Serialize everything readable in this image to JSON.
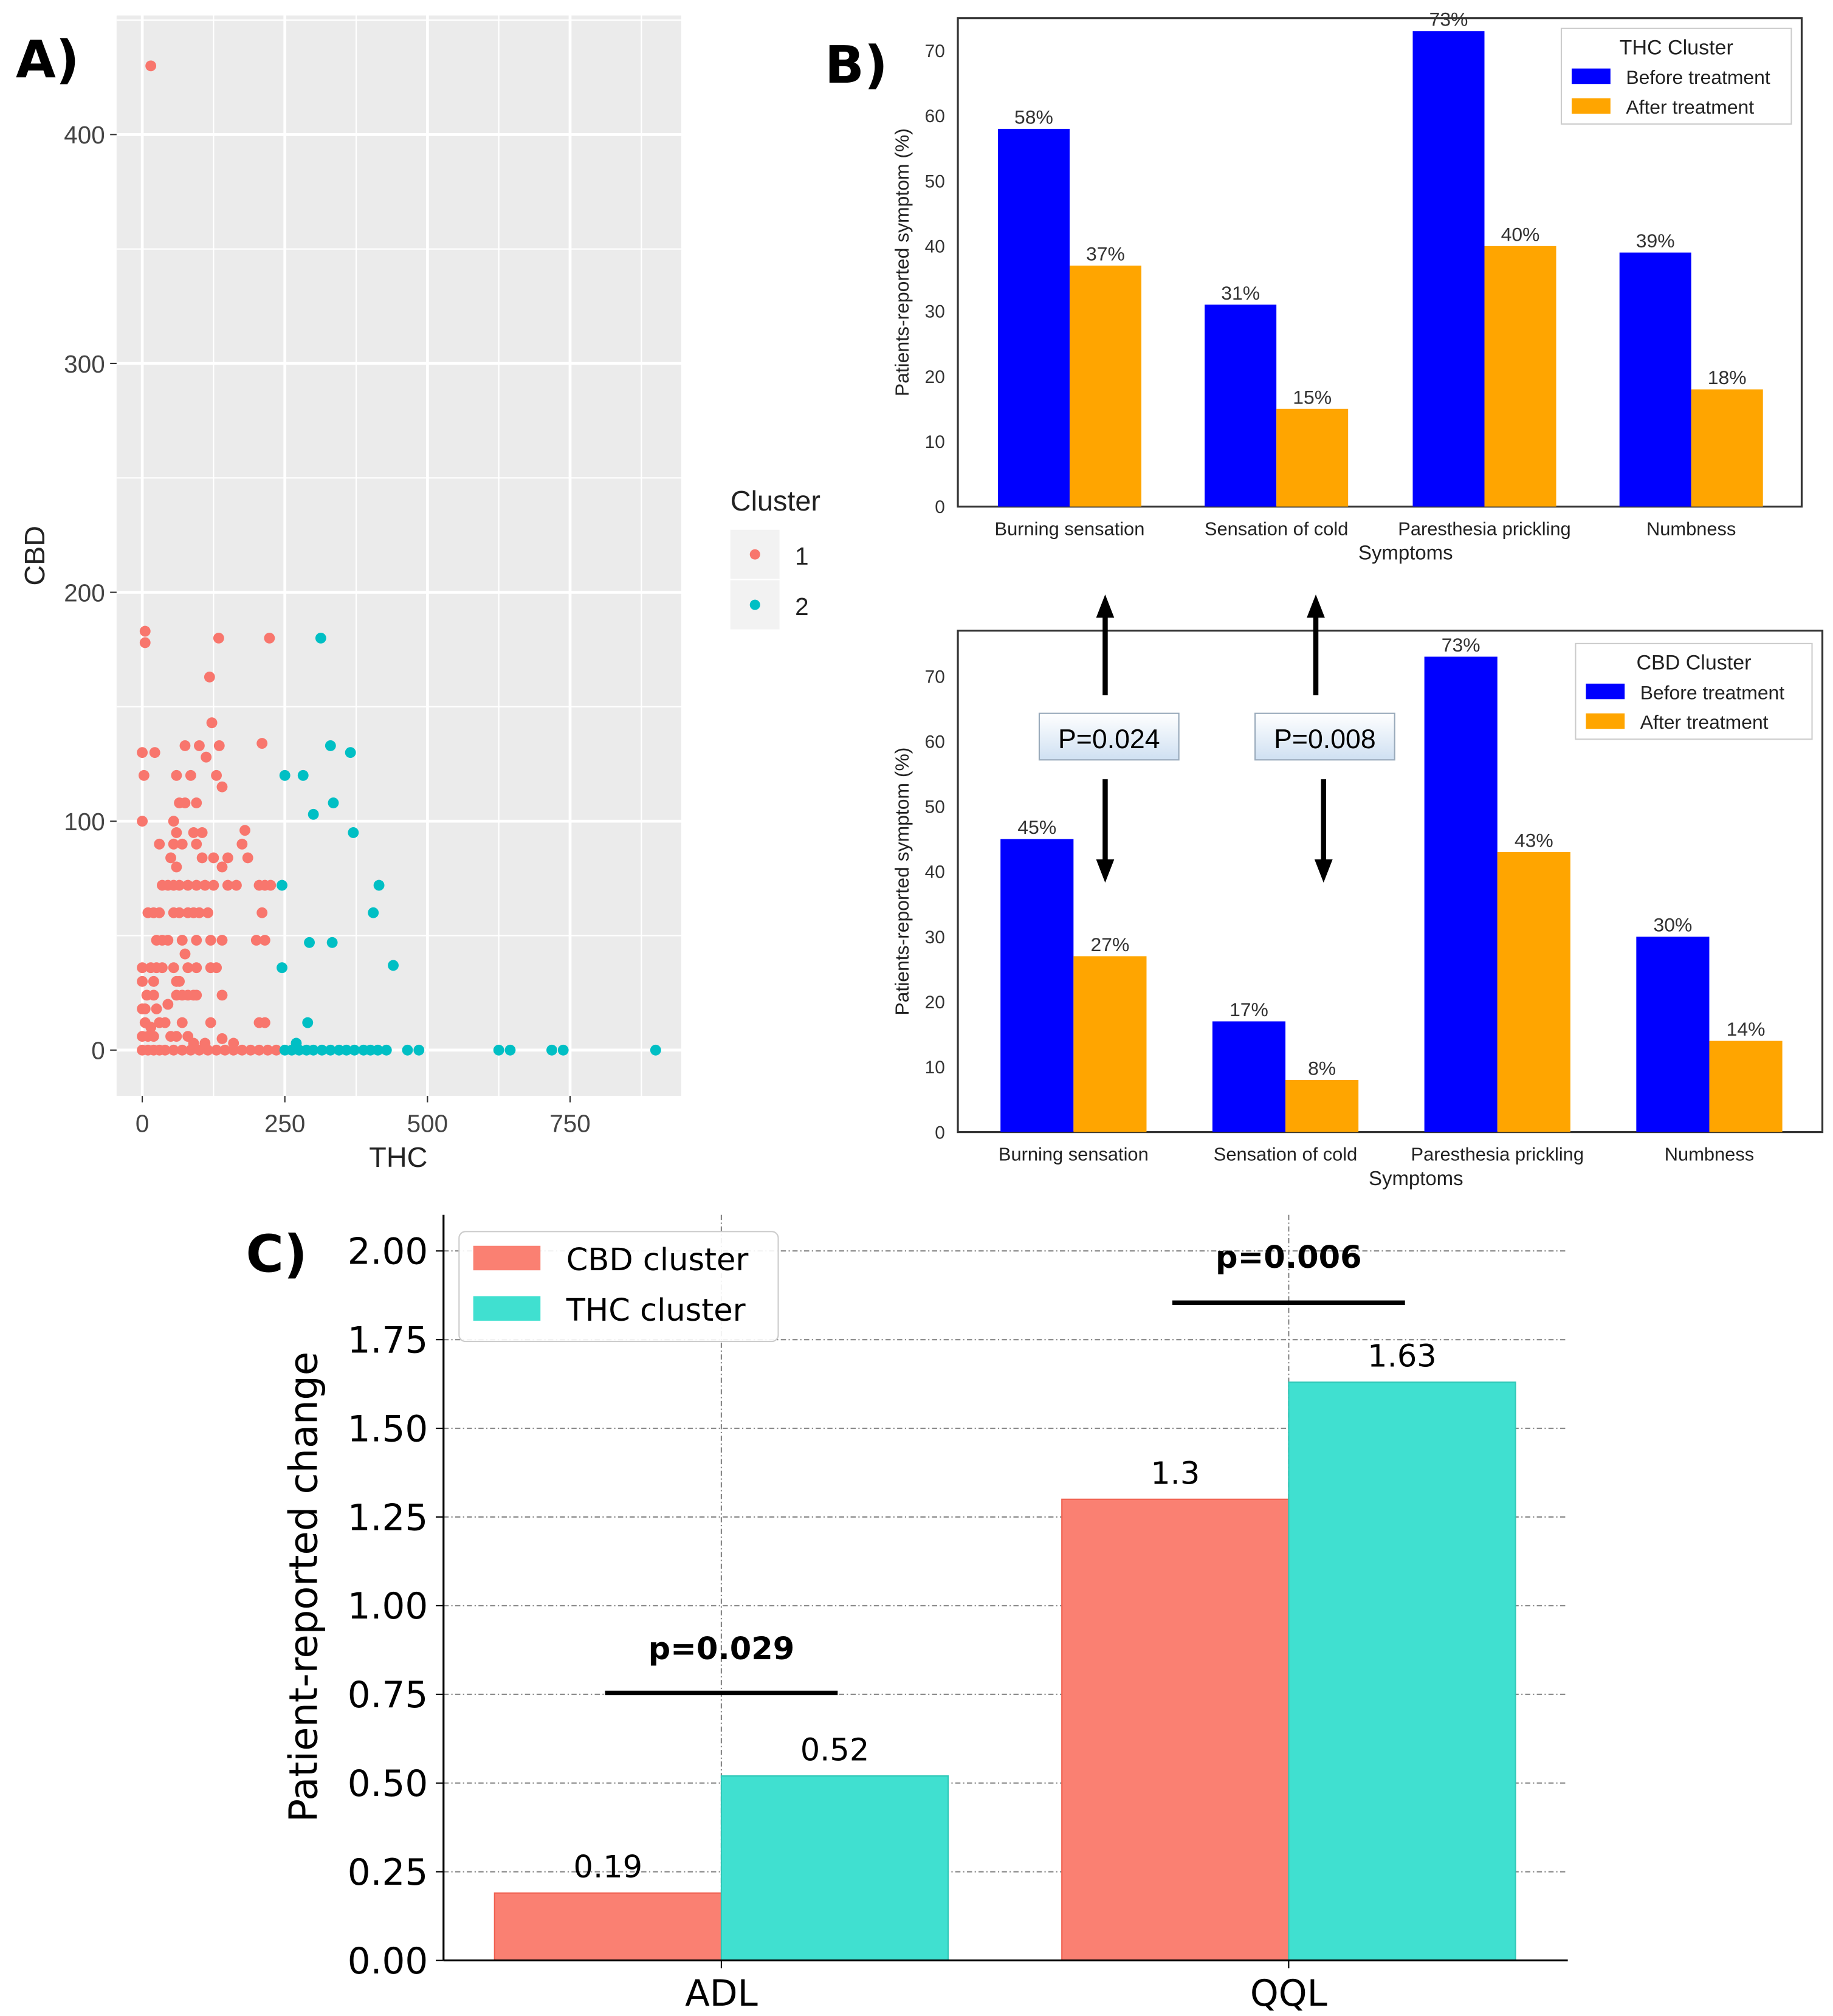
{
  "panel_labels": {
    "a": "A)",
    "b": "B)",
    "c": "C)"
  },
  "chart_data": [
    {
      "type": "scatter",
      "panel": "A",
      "xlabel": "THC",
      "ylabel": "CBD",
      "xlim": [
        -45,
        945
      ],
      "ylim": [
        -20,
        452
      ],
      "xticks": [
        "0",
        "250",
        "500",
        "750"
      ],
      "xtick_values": [
        0,
        250,
        500,
        750
      ],
      "yticks": [
        "0",
        "100",
        "200",
        "300",
        "400"
      ],
      "ytick_values": [
        0,
        100,
        200,
        300,
        400
      ],
      "grid": true,
      "legend": {
        "title": "Cluster",
        "placement": "right",
        "entries": [
          "1",
          "2"
        ]
      },
      "colors": {
        "1": "#F8766D",
        "2": "#00BFC4"
      },
      "series": [
        {
          "name": "1",
          "points": [
            [
              15,
              430
            ],
            [
              5,
              183
            ],
            [
              5,
              178
            ],
            [
              134,
              180
            ],
            [
              223,
              180
            ],
            [
              118,
              163
            ],
            [
              122,
              143
            ],
            [
              0,
              130
            ],
            [
              22,
              130
            ],
            [
              75,
              133
            ],
            [
              100,
              133
            ],
            [
              112,
              128
            ],
            [
              135,
              133
            ],
            [
              210,
              134
            ],
            [
              3,
              120
            ],
            [
              60,
              120
            ],
            [
              85,
              120
            ],
            [
              130,
              120
            ],
            [
              140,
              115
            ],
            [
              65,
              108
            ],
            [
              75,
              108
            ],
            [
              95,
              108
            ],
            [
              0,
              100
            ],
            [
              55,
              100
            ],
            [
              60,
              95
            ],
            [
              90,
              95
            ],
            [
              105,
              95
            ],
            [
              180,
              96
            ],
            [
              30,
              90
            ],
            [
              55,
              90
            ],
            [
              70,
              90
            ],
            [
              95,
              90
            ],
            [
              175,
              90
            ],
            [
              185,
              84
            ],
            [
              50,
              84
            ],
            [
              60,
              80
            ],
            [
              105,
              84
            ],
            [
              125,
              84
            ],
            [
              150,
              84
            ],
            [
              140,
              80
            ],
            [
              35,
              72
            ],
            [
              45,
              72
            ],
            [
              55,
              72
            ],
            [
              65,
              72
            ],
            [
              80,
              72
            ],
            [
              95,
              72
            ],
            [
              110,
              72
            ],
            [
              125,
              72
            ],
            [
              150,
              72
            ],
            [
              165,
              72
            ],
            [
              205,
              72
            ],
            [
              215,
              72
            ],
            [
              225,
              72
            ],
            [
              10,
              60
            ],
            [
              20,
              60
            ],
            [
              30,
              60
            ],
            [
              55,
              60
            ],
            [
              65,
              60
            ],
            [
              80,
              60
            ],
            [
              90,
              60
            ],
            [
              100,
              60
            ],
            [
              115,
              60
            ],
            [
              210,
              60
            ],
            [
              25,
              48
            ],
            [
              35,
              48
            ],
            [
              45,
              48
            ],
            [
              70,
              48
            ],
            [
              75,
              42
            ],
            [
              95,
              48
            ],
            [
              120,
              48
            ],
            [
              140,
              48
            ],
            [
              200,
              48
            ],
            [
              215,
              48
            ],
            [
              0,
              36
            ],
            [
              15,
              36
            ],
            [
              25,
              36
            ],
            [
              35,
              36
            ],
            [
              55,
              36
            ],
            [
              60,
              30
            ],
            [
              65,
              30
            ],
            [
              80,
              36
            ],
            [
              95,
              36
            ],
            [
              120,
              36
            ],
            [
              130,
              36
            ],
            [
              0,
              30
            ],
            [
              20,
              30
            ],
            [
              60,
              24
            ],
            [
              70,
              24
            ],
            [
              80,
              24
            ],
            [
              90,
              24
            ],
            [
              95,
              24
            ],
            [
              140,
              24
            ],
            [
              20,
              24
            ],
            [
              45,
              20
            ],
            [
              5,
              18
            ],
            [
              25,
              18
            ],
            [
              30,
              12
            ],
            [
              5,
              12
            ],
            [
              10,
              6
            ],
            [
              15,
              10
            ],
            [
              20,
              6
            ],
            [
              40,
              12
            ],
            [
              50,
              6
            ],
            [
              70,
              12
            ],
            [
              120,
              12
            ],
            [
              205,
              12
            ],
            [
              215,
              12
            ],
            [
              0,
              0
            ],
            [
              10,
              0
            ],
            [
              20,
              0
            ],
            [
              30,
              0
            ],
            [
              40,
              0
            ],
            [
              55,
              0
            ],
            [
              70,
              0
            ],
            [
              85,
              0
            ],
            [
              100,
              0
            ],
            [
              115,
              0
            ],
            [
              130,
              0
            ],
            [
              145,
              0
            ],
            [
              160,
              0
            ],
            [
              175,
              0
            ],
            [
              190,
              0
            ],
            [
              205,
              0
            ],
            [
              220,
              0
            ],
            [
              235,
              0
            ],
            [
              60,
              6
            ],
            [
              80,
              6
            ],
            [
              90,
              3
            ],
            [
              110,
              3
            ],
            [
              140,
              5
            ],
            [
              160,
              3
            ],
            [
              0,
              6
            ],
            [
              0,
              18
            ],
            [
              8,
              24
            ]
          ]
        },
        {
          "name": "2",
          "points": [
            [
              313,
              180
            ],
            [
              330,
              133
            ],
            [
              365,
              130
            ],
            [
              250,
              120
            ],
            [
              282,
              120
            ],
            [
              300,
              103
            ],
            [
              335,
              108
            ],
            [
              370,
              95
            ],
            [
              245,
              72
            ],
            [
              415,
              72
            ],
            [
              405,
              60
            ],
            [
              293,
              47
            ],
            [
              333,
              47
            ],
            [
              440,
              37
            ],
            [
              245,
              36
            ],
            [
              290,
              12
            ],
            [
              270,
              3
            ],
            [
              250,
              0
            ],
            [
              262,
              0
            ],
            [
              275,
              0
            ],
            [
              288,
              0
            ],
            [
              300,
              0
            ],
            [
              315,
              0
            ],
            [
              330,
              0
            ],
            [
              345,
              0
            ],
            [
              358,
              0
            ],
            [
              372,
              0
            ],
            [
              388,
              0
            ],
            [
              400,
              0
            ],
            [
              413,
              0
            ],
            [
              428,
              0
            ],
            [
              465,
              0
            ],
            [
              485,
              0
            ],
            [
              625,
              0
            ],
            [
              645,
              0
            ],
            [
              718,
              0
            ],
            [
              738,
              0
            ],
            [
              900,
              0
            ]
          ]
        }
      ]
    },
    {
      "type": "bar",
      "panel": "B-top",
      "xlabel": "Symptoms",
      "ylabel": "Patients-reported symptom (%)",
      "ylim": [
        0,
        75
      ],
      "yticks": [
        "0",
        "10",
        "20",
        "30",
        "40",
        "50",
        "60",
        "70"
      ],
      "categories": [
        "Burning sensation",
        "Sensation of cold",
        "Paresthesia prickling",
        "Numbness"
      ],
      "legend": {
        "title": "THC Cluster",
        "placement": "top-right"
      },
      "series": [
        {
          "name": "Before treatment",
          "color": "#0000FF",
          "values": [
            58,
            31,
            73,
            39
          ],
          "labels": [
            "58%",
            "31%",
            "73%",
            "39%"
          ]
        },
        {
          "name": "After treatment",
          "color": "#FFA500",
          "values": [
            37,
            15,
            40,
            18
          ],
          "labels": [
            "37%",
            "15%",
            "40%",
            "18%"
          ]
        }
      ]
    },
    {
      "type": "bar",
      "panel": "B-bottom",
      "xlabel": "Symptoms",
      "ylabel": "Patients-reported symptom (%)",
      "ylim": [
        0,
        77
      ],
      "yticks": [
        "0",
        "10",
        "20",
        "30",
        "40",
        "50",
        "60",
        "70"
      ],
      "categories": [
        "Burning sensation",
        "Sensation of cold",
        "Paresthesia prickling",
        "Numbness"
      ],
      "legend": {
        "title": "CBD Cluster",
        "placement": "top-right"
      },
      "series": [
        {
          "name": "Before treatment",
          "color": "#0000FF",
          "values": [
            45,
            17,
            73,
            30
          ],
          "labels": [
            "45%",
            "17%",
            "73%",
            "30%"
          ]
        },
        {
          "name": "After treatment",
          "color": "#FFA500",
          "values": [
            27,
            8,
            43,
            14
          ],
          "labels": [
            "27%",
            "8%",
            "43%",
            "14%"
          ]
        }
      ],
      "annotations": [
        "P=0.024",
        "P=0.008"
      ]
    },
    {
      "type": "bar",
      "panel": "C",
      "xlabel": "",
      "ylabel": "Patient-reported change",
      "ylim": [
        0,
        2.1
      ],
      "yticks": [
        "0.00",
        "0.25",
        "0.50",
        "0.75",
        "1.00",
        "1.25",
        "1.50",
        "1.75",
        "2.00"
      ],
      "categories": [
        "ADL",
        "QQL"
      ],
      "grid": true,
      "legend": {
        "placement": "top-left"
      },
      "series": [
        {
          "name": "CBD cluster",
          "color": "#FA8072",
          "values": [
            0.19,
            1.3
          ],
          "labels": [
            "0.19",
            "1.3"
          ]
        },
        {
          "name": "THC cluster",
          "color": "#40E0D0",
          "values": [
            0.52,
            1.63
          ],
          "labels": [
            "0.52",
            "1.63"
          ]
        }
      ],
      "annotations": [
        "p=0.029",
        "p=0.006"
      ]
    }
  ]
}
